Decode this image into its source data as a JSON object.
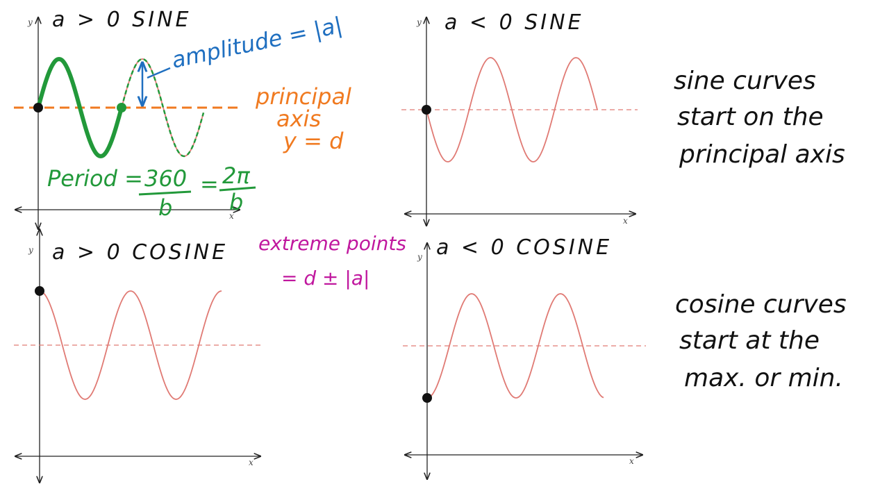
{
  "panels": [
    {
      "title": "a > 0  SINE",
      "x_label": "x",
      "y_label": "y"
    },
    {
      "title": "a < 0  SINE",
      "x_label": "x",
      "y_label": "y"
    },
    {
      "title": "a > 0  COSINE",
      "x_label": "x",
      "y_label": "y"
    },
    {
      "title": "a < 0  COSINE",
      "x_label": "x",
      "y_label": "y"
    }
  ],
  "annotations": {
    "amplitude": "amplitude = |a|",
    "principal_axis": [
      "principal",
      "axis",
      "y = d"
    ],
    "period": {
      "label": "Period =",
      "fraction1": {
        "num": "360",
        "den": "b"
      },
      "equals": "=",
      "fraction2": {
        "num": "2π",
        "den": "b"
      }
    },
    "extreme_points": [
      "extreme points",
      "= d ± |a|"
    ]
  },
  "notes": {
    "sine": [
      "sine curves",
      "start on the",
      "principal axis"
    ],
    "cosine": [
      "cosine curves",
      "start at the",
      "max. or min."
    ]
  }
}
